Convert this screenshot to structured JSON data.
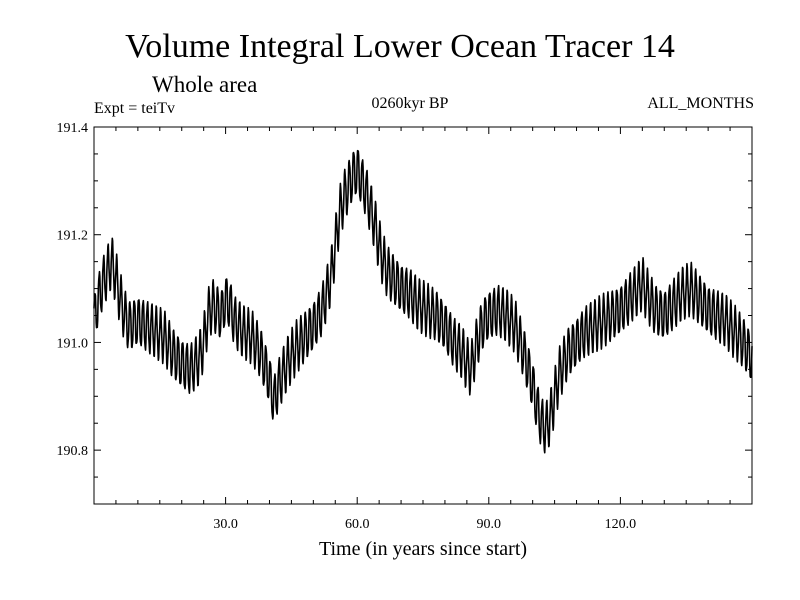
{
  "chart_data": {
    "type": "line",
    "title": "Volume Integral Lower Ocean Tracer 14",
    "subtitle": "Whole area",
    "experiment_label": "Expt = teiTv",
    "period_label": "0260kyr BP",
    "months_label": "ALL_MONTHS",
    "xlabel": "Time (in years since start)",
    "ylabel": "",
    "xlim": [
      0,
      150
    ],
    "ylim": [
      190.7,
      191.4
    ],
    "xticks": [
      30,
      60,
      90,
      120
    ],
    "xtick_labels": [
      "30.0",
      "60.0",
      "90.0",
      "120.0"
    ],
    "yticks": [
      190.8,
      191.0,
      191.2,
      191.4
    ],
    "ytick_labels": [
      "190.8",
      "191.0",
      "191.2",
      "191.4"
    ],
    "grid": false,
    "series": [
      {
        "name": "Volume Integral Lower Ocean Tracer 14",
        "seasonal_amplitude": 0.045,
        "x": [
          0,
          1,
          2,
          3,
          4,
          5,
          6,
          7,
          8,
          10,
          12,
          14,
          16,
          18,
          20,
          22,
          24,
          25,
          26,
          27,
          28,
          29,
          30,
          31,
          32,
          34,
          36,
          38,
          40,
          41,
          42,
          44,
          46,
          48,
          50,
          52,
          54,
          55,
          56,
          57,
          58,
          59,
          60,
          61,
          62,
          63,
          64,
          65,
          66,
          67,
          68,
          70,
          72,
          74,
          76,
          78,
          80,
          82,
          84,
          85,
          86,
          87,
          88,
          89,
          90,
          92,
          94,
          96,
          98,
          100,
          101,
          102,
          103,
          104,
          105,
          106,
          108,
          110,
          112,
          114,
          116,
          118,
          120,
          122,
          124,
          125,
          126,
          128,
          130,
          132,
          134,
          136,
          138,
          140,
          142,
          144,
          146,
          148,
          150
        ],
        "values": [
          191.04,
          191.08,
          191.11,
          191.13,
          191.15,
          191.12,
          191.08,
          191.05,
          191.03,
          191.04,
          191.03,
          191.02,
          191.01,
          190.98,
          190.96,
          190.95,
          190.97,
          191.0,
          191.05,
          191.07,
          191.06,
          191.05,
          191.08,
          191.07,
          191.04,
          191.02,
          191.01,
          190.98,
          190.93,
          190.89,
          190.92,
          190.96,
          190.99,
          191.01,
          191.03,
          191.06,
          191.12,
          191.18,
          191.24,
          191.27,
          191.29,
          191.31,
          191.32,
          191.3,
          191.28,
          191.25,
          191.22,
          191.18,
          191.15,
          191.13,
          191.12,
          191.1,
          191.09,
          191.07,
          191.06,
          191.05,
          191.03,
          191.0,
          190.98,
          190.96,
          190.95,
          190.99,
          191.02,
          191.04,
          191.05,
          191.06,
          191.05,
          191.03,
          190.98,
          190.92,
          190.88,
          190.85,
          190.84,
          190.86,
          190.9,
          190.94,
          190.98,
          191.0,
          191.02,
          191.03,
          191.04,
          191.05,
          191.06,
          191.08,
          191.1,
          191.11,
          191.09,
          191.06,
          191.05,
          191.07,
          191.09,
          191.1,
          191.08,
          191.06,
          191.05,
          191.04,
          191.02,
          191.0,
          190.97
        ]
      }
    ]
  }
}
